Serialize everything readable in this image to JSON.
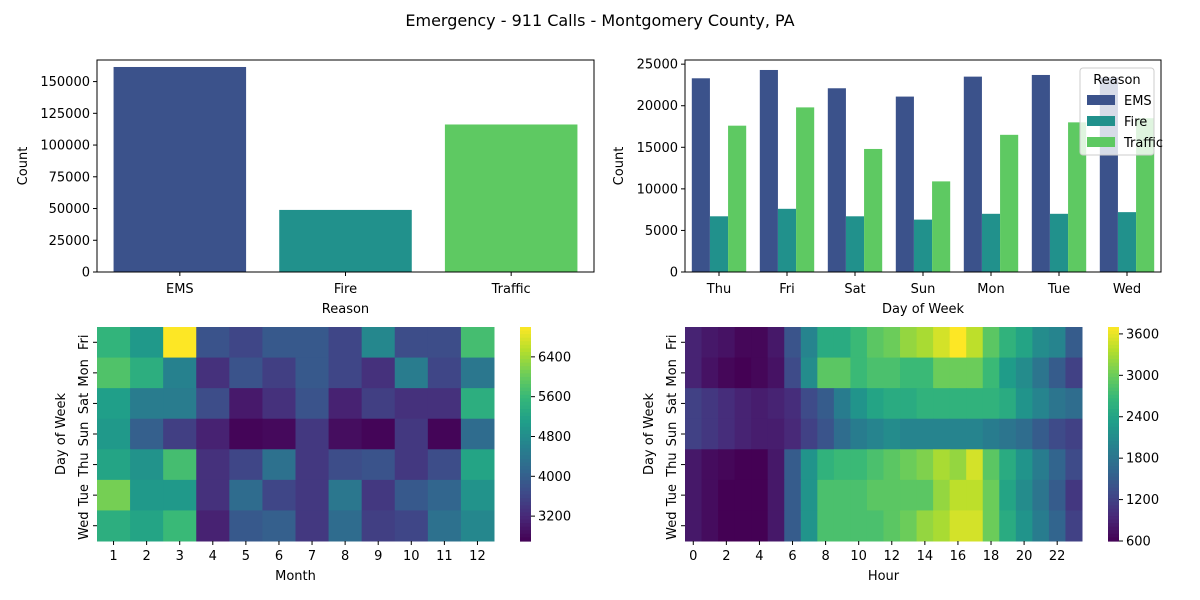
{
  "figure": {
    "suptitle": "Emergency - 911 Calls - Montgomery County, PA"
  },
  "chart_data": [
    {
      "type": "bar",
      "title": "",
      "xlabel": "Reason",
      "ylabel": "Count",
      "categories": [
        "EMS",
        "Fire",
        "Traffic"
      ],
      "values": [
        161500,
        48900,
        116200
      ],
      "ylim": [
        0,
        167000
      ],
      "yticks": [
        0,
        25000,
        50000,
        75000,
        100000,
        125000,
        150000
      ],
      "colors": [
        "#3b528b",
        "#21918c",
        "#5ec962"
      ]
    },
    {
      "type": "bar",
      "title": "",
      "xlabel": "Day of Week",
      "ylabel": "Count",
      "categories": [
        "Thu",
        "Fri",
        "Sat",
        "Sun",
        "Mon",
        "Tue",
        "Wed"
      ],
      "legend_title": "Reason",
      "legend_position": "top-right",
      "series": [
        {
          "name": "EMS",
          "color": "#3b528b",
          "values": [
            23300,
            24300,
            22100,
            21100,
            23500,
            23700,
            23400
          ]
        },
        {
          "name": "Fire",
          "color": "#21918c",
          "values": [
            6700,
            7600,
            6700,
            6300,
            7000,
            7000,
            7200
          ]
        },
        {
          "name": "Traffic",
          "color": "#5ec962",
          "values": [
            17600,
            19800,
            14800,
            10900,
            16500,
            18000,
            18500
          ]
        }
      ],
      "ylim": [
        0,
        25500
      ],
      "yticks": [
        0,
        5000,
        10000,
        15000,
        20000,
        25000
      ]
    },
    {
      "type": "heatmap",
      "title": "",
      "xlabel": "Month",
      "ylabel": "Day of Week",
      "x": [
        "1",
        "2",
        "3",
        "4",
        "5",
        "6",
        "7",
        "8",
        "9",
        "10",
        "11",
        "12"
      ],
      "y": [
        "Fri",
        "Mon",
        "Sat",
        "Sun",
        "Thu",
        "Tue",
        "Wed"
      ],
      "colormap": "viridis",
      "vmin": 2700,
      "vmax": 7000,
      "colorbar_ticks": [
        3200,
        4000,
        4800,
        5600,
        6400
      ],
      "values": [
        [
          5500,
          5000,
          7000,
          3800,
          3600,
          3900,
          3900,
          3600,
          4700,
          3700,
          3700,
          5700
        ],
        [
          5800,
          5400,
          4600,
          3300,
          3800,
          3500,
          3900,
          3600,
          3300,
          4500,
          3600,
          4400
        ],
        [
          5100,
          4500,
          4500,
          3700,
          3000,
          3300,
          3800,
          3100,
          3500,
          3300,
          3300,
          5400
        ],
        [
          5000,
          4000,
          3500,
          3100,
          2750,
          2800,
          3400,
          2850,
          2750,
          3400,
          2750,
          4200
        ],
        [
          5200,
          4900,
          5700,
          3300,
          3600,
          4300,
          3400,
          3700,
          3800,
          3400,
          3700,
          5200
        ],
        [
          6100,
          5000,
          5000,
          3300,
          4200,
          3600,
          3400,
          4400,
          3400,
          3900,
          4100,
          4900
        ],
        [
          5400,
          5200,
          5600,
          3100,
          3900,
          4000,
          3400,
          4200,
          3500,
          3600,
          4300,
          4700
        ]
      ]
    },
    {
      "type": "heatmap",
      "title": "",
      "xlabel": "Hour",
      "ylabel": "Day of Week",
      "x": [
        "0",
        "1",
        "2",
        "3",
        "4",
        "5",
        "6",
        "7",
        "8",
        "9",
        "10",
        "11",
        "12",
        "13",
        "14",
        "15",
        "16",
        "17",
        "18",
        "19",
        "20",
        "21",
        "22",
        "23"
      ],
      "x_tick_labels_shown": [
        "0",
        "2",
        "4",
        "6",
        "8",
        "10",
        "12",
        "14",
        "16",
        "18",
        "20",
        "22"
      ],
      "y": [
        "Fri",
        "Mon",
        "Sat",
        "Sun",
        "Thu",
        "Tue",
        "Wed"
      ],
      "colormap": "viridis",
      "vmin": 600,
      "vmax": 3700,
      "colorbar_ticks": [
        600,
        1200,
        1800,
        2400,
        3000,
        3600
      ],
      "values": [
        [
          900,
          800,
          750,
          650,
          650,
          800,
          1400,
          2000,
          2500,
          2500,
          2700,
          2900,
          3000,
          3200,
          3300,
          3500,
          3700,
          3400,
          2900,
          2600,
          2400,
          2100,
          2000,
          1500
        ],
        [
          900,
          750,
          650,
          600,
          650,
          750,
          1300,
          2100,
          2900,
          2900,
          2700,
          2800,
          2800,
          2700,
          2700,
          3000,
          3000,
          3000,
          2700,
          2300,
          2100,
          1800,
          1500,
          1200
        ],
        [
          1200,
          1100,
          1000,
          900,
          850,
          900,
          1000,
          1300,
          1500,
          1900,
          2200,
          2400,
          2500,
          2500,
          2600,
          2600,
          2600,
          2600,
          2600,
          2500,
          2200,
          2000,
          1800,
          1700
        ],
        [
          1200,
          1100,
          1000,
          900,
          850,
          850,
          950,
          1200,
          1400,
          1700,
          1900,
          2000,
          2100,
          2000,
          2000,
          2000,
          2000,
          2000,
          1900,
          1800,
          1700,
          1500,
          1300,
          1200
        ],
        [
          800,
          700,
          650,
          600,
          600,
          800,
          1500,
          2200,
          2600,
          2700,
          2700,
          2800,
          2900,
          3000,
          3100,
          3300,
          3200,
          3500,
          2900,
          2500,
          2200,
          1900,
          1600,
          1300
        ],
        [
          800,
          700,
          600,
          600,
          600,
          800,
          1500,
          2200,
          2800,
          2800,
          2800,
          2900,
          2900,
          2900,
          2900,
          3200,
          3400,
          3400,
          3000,
          2400,
          2100,
          1800,
          1500,
          1100
        ],
        [
          800,
          700,
          600,
          600,
          550,
          800,
          1500,
          2200,
          2800,
          2800,
          2800,
          2800,
          2900,
          3000,
          3200,
          3300,
          3500,
          3500,
          3000,
          2500,
          2200,
          1900,
          1600,
          1200
        ]
      ]
    }
  ]
}
